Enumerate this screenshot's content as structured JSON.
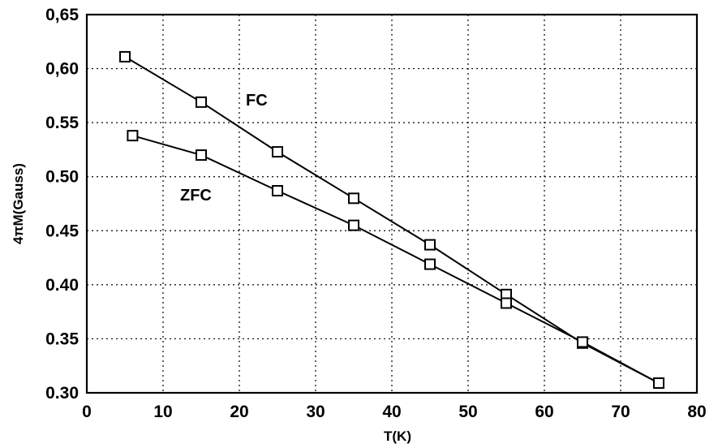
{
  "chart_data": {
    "type": "line",
    "title": "",
    "xlabel": "T(K)",
    "ylabel": "4πM(Gauss)",
    "xlim": [
      0,
      80
    ],
    "ylim": [
      0.3,
      0.65
    ],
    "x_ticks": [
      "0",
      "10",
      "20",
      "30",
      "40",
      "50",
      "60",
      "70",
      "80"
    ],
    "y_ticks": [
      "0,65",
      "0,60",
      "0.55",
      "0.50",
      "0.45",
      "0.40",
      "0.35",
      "0.30"
    ],
    "grid": true,
    "series": [
      {
        "name": "FC",
        "x": [
          5,
          15,
          25,
          35,
          45,
          55,
          65,
          75
        ],
        "y": [
          0.611,
          0.569,
          0.523,
          0.48,
          0.437,
          0.391,
          0.346,
          0.309
        ]
      },
      {
        "name": "ZFC",
        "x": [
          6,
          15,
          25,
          35,
          45,
          55,
          65,
          75
        ],
        "y": [
          0.538,
          0.52,
          0.487,
          0.455,
          0.419,
          0.383,
          0.347,
          0.309
        ]
      }
    ]
  }
}
